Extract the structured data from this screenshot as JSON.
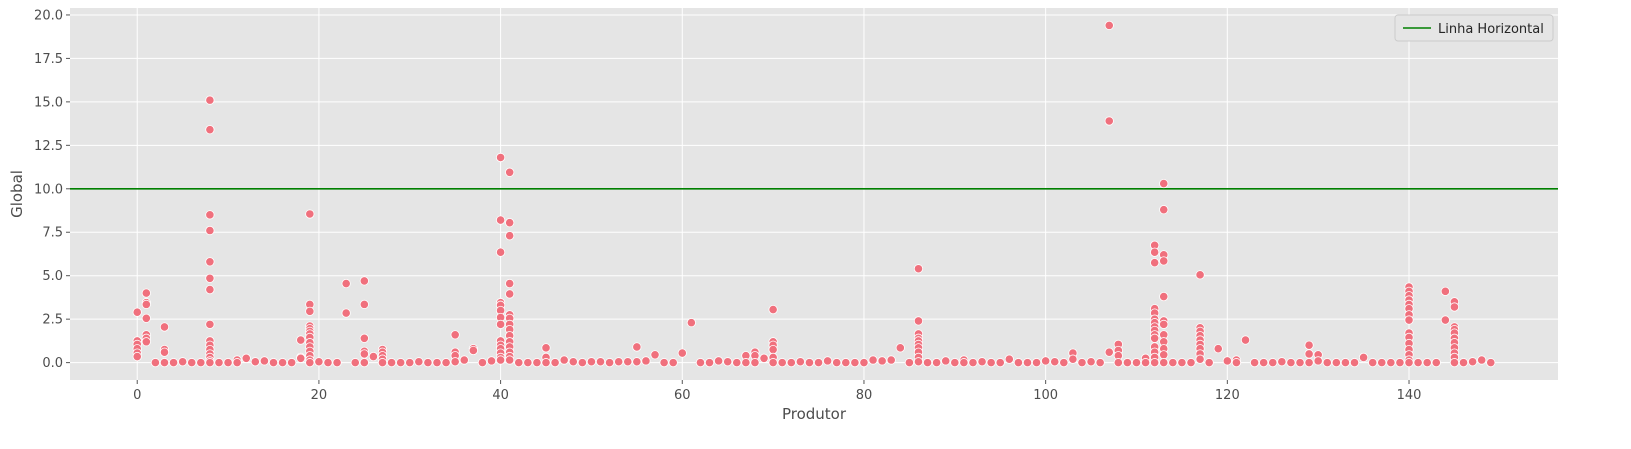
{
  "chart_data": {
    "type": "scatter",
    "xlabel": "Produtor",
    "ylabel": "Global",
    "xlim": [
      -7.4,
      156.4
    ],
    "ylim": [
      -1.0,
      20.4
    ],
    "xticks": [
      0,
      20,
      40,
      60,
      80,
      100,
      120,
      140
    ],
    "yticks": [
      0.0,
      2.5,
      5.0,
      7.5,
      10.0,
      12.5,
      15.0,
      17.5,
      20.0
    ],
    "ytick_labels": [
      "0.0",
      "2.5",
      "5.0",
      "7.5",
      "10.0",
      "12.5",
      "15.0",
      "17.5",
      "20.0"
    ],
    "grid": true,
    "legend_position": "top-right",
    "legend": [
      {
        "label": "Linha Horizontal",
        "color": "#008000",
        "kind": "line"
      }
    ],
    "hline": {
      "y": 10.0,
      "color": "#008000",
      "label": "Linha Horizontal"
    },
    "point_color": "#f0707d",
    "background_color": "#e5e5e5",
    "grid_color": "#ffffff",
    "points": [
      [
        0,
        2.9
      ],
      [
        0,
        1.25
      ],
      [
        0,
        1.05
      ],
      [
        0,
        0.8
      ],
      [
        0,
        0.55
      ],
      [
        0,
        0.35
      ],
      [
        1,
        4.0
      ],
      [
        1,
        3.45
      ],
      [
        1,
        3.35
      ],
      [
        1,
        2.55
      ],
      [
        1,
        1.6
      ],
      [
        1,
        1.4
      ],
      [
        1,
        1.2
      ],
      [
        2,
        0.0
      ],
      [
        3,
        2.05
      ],
      [
        3,
        0.75
      ],
      [
        3,
        0.6
      ],
      [
        3,
        0.0
      ],
      [
        4,
        0.0
      ],
      [
        5,
        0.05
      ],
      [
        6,
        0.0
      ],
      [
        7,
        0.0
      ],
      [
        8,
        15.1
      ],
      [
        8,
        13.4
      ],
      [
        8,
        8.5
      ],
      [
        8,
        7.6
      ],
      [
        8,
        5.8
      ],
      [
        8,
        4.85
      ],
      [
        8,
        4.2
      ],
      [
        8,
        2.2
      ],
      [
        8,
        1.25
      ],
      [
        8,
        1.0
      ],
      [
        8,
        0.75
      ],
      [
        8,
        0.5
      ],
      [
        8,
        0.3
      ],
      [
        8,
        0.1
      ],
      [
        8,
        0.0
      ],
      [
        9,
        0.0
      ],
      [
        10,
        0.0
      ],
      [
        11,
        0.15
      ],
      [
        11,
        0.0
      ],
      [
        12,
        0.25
      ],
      [
        13,
        0.05
      ],
      [
        14,
        0.1
      ],
      [
        15,
        0.0
      ],
      [
        16,
        0.0
      ],
      [
        17,
        0.0
      ],
      [
        18,
        1.3
      ],
      [
        18,
        0.3
      ],
      [
        18,
        0.25
      ],
      [
        19,
        8.55
      ],
      [
        19,
        3.35
      ],
      [
        19,
        2.95
      ],
      [
        19,
        2.1
      ],
      [
        19,
        1.95
      ],
      [
        19,
        1.8
      ],
      [
        19,
        1.65
      ],
      [
        19,
        1.45
      ],
      [
        19,
        1.15
      ],
      [
        19,
        0.9
      ],
      [
        19,
        0.65
      ],
      [
        19,
        0.4
      ],
      [
        19,
        0.15
      ],
      [
        19,
        0.0
      ],
      [
        20,
        0.05
      ],
      [
        21,
        0.0
      ],
      [
        22,
        0.0
      ],
      [
        23,
        4.55
      ],
      [
        23,
        2.85
      ],
      [
        24,
        0.0
      ],
      [
        25,
        4.7
      ],
      [
        25,
        3.35
      ],
      [
        25,
        1.4
      ],
      [
        25,
        0.65
      ],
      [
        25,
        0.5
      ],
      [
        25,
        0.0
      ],
      [
        26,
        0.35
      ],
      [
        27,
        0.75
      ],
      [
        27,
        0.6
      ],
      [
        27,
        0.4
      ],
      [
        27,
        0.2
      ],
      [
        27,
        0.0
      ],
      [
        28,
        0.0
      ],
      [
        29,
        0.0
      ],
      [
        30,
        0.0
      ],
      [
        31,
        0.05
      ],
      [
        32,
        0.0
      ],
      [
        33,
        0.0
      ],
      [
        34,
        0.0
      ],
      [
        35,
        1.6
      ],
      [
        35,
        0.6
      ],
      [
        35,
        0.4
      ],
      [
        35,
        0.05
      ],
      [
        36,
        0.15
      ],
      [
        37,
        0.8
      ],
      [
        37,
        0.7
      ],
      [
        38,
        0.0
      ],
      [
        39,
        0.1
      ],
      [
        40,
        11.8
      ],
      [
        40,
        8.2
      ],
      [
        40,
        6.35
      ],
      [
        40,
        3.45
      ],
      [
        40,
        3.3
      ],
      [
        40,
        3.0
      ],
      [
        40,
        2.6
      ],
      [
        40,
        2.2
      ],
      [
        40,
        1.25
      ],
      [
        40,
        1.0
      ],
      [
        40,
        0.8
      ],
      [
        40,
        0.55
      ],
      [
        40,
        0.3
      ],
      [
        40,
        0.15
      ],
      [
        41,
        10.95
      ],
      [
        41,
        8.05
      ],
      [
        41,
        7.3
      ],
      [
        41,
        4.55
      ],
      [
        41,
        3.95
      ],
      [
        41,
        2.75
      ],
      [
        41,
        2.55
      ],
      [
        41,
        2.2
      ],
      [
        41,
        1.9
      ],
      [
        41,
        1.55
      ],
      [
        41,
        1.2
      ],
      [
        41,
        0.9
      ],
      [
        41,
        0.6
      ],
      [
        41,
        0.35
      ],
      [
        41,
        0.15
      ],
      [
        42,
        0.0
      ],
      [
        43,
        0.0
      ],
      [
        44,
        0.0
      ],
      [
        45,
        0.85
      ],
      [
        45,
        0.3
      ],
      [
        45,
        0.0
      ],
      [
        46,
        0.0
      ],
      [
        47,
        0.15
      ],
      [
        48,
        0.05
      ],
      [
        49,
        0.0
      ],
      [
        50,
        0.05
      ],
      [
        51,
        0.05
      ],
      [
        52,
        0.0
      ],
      [
        53,
        0.05
      ],
      [
        54,
        0.05
      ],
      [
        55,
        0.9
      ],
      [
        55,
        0.05
      ],
      [
        56,
        0.1
      ],
      [
        57,
        0.45
      ],
      [
        58,
        0.0
      ],
      [
        59,
        0.0
      ],
      [
        60,
        0.55
      ],
      [
        61,
        2.3
      ],
      [
        62,
        0.0
      ],
      [
        63,
        0.0
      ],
      [
        64,
        0.1
      ],
      [
        65,
        0.05
      ],
      [
        66,
        0.0
      ],
      [
        67,
        0.4
      ],
      [
        67,
        0.0
      ],
      [
        68,
        0.6
      ],
      [
        68,
        0.4
      ],
      [
        68,
        0.0
      ],
      [
        69,
        0.25
      ],
      [
        70,
        3.05
      ],
      [
        70,
        1.2
      ],
      [
        70,
        1.0
      ],
      [
        70,
        0.75
      ],
      [
        70,
        0.3
      ],
      [
        70,
        0.0
      ],
      [
        71,
        0.0
      ],
      [
        72,
        0.0
      ],
      [
        73,
        0.05
      ],
      [
        74,
        0.0
      ],
      [
        75,
        0.0
      ],
      [
        76,
        0.1
      ],
      [
        77,
        0.0
      ],
      [
        78,
        0.0
      ],
      [
        79,
        0.0
      ],
      [
        80,
        0.0
      ],
      [
        81,
        0.15
      ],
      [
        82,
        0.1
      ],
      [
        83,
        0.15
      ],
      [
        84,
        0.85
      ],
      [
        85,
        0.0
      ],
      [
        86,
        5.4
      ],
      [
        86,
        2.4
      ],
      [
        86,
        1.65
      ],
      [
        86,
        1.4
      ],
      [
        86,
        1.25
      ],
      [
        86,
        1.05
      ],
      [
        86,
        0.85
      ],
      [
        86,
        0.6
      ],
      [
        86,
        0.3
      ],
      [
        86,
        0.05
      ],
      [
        87,
        0.0
      ],
      [
        88,
        0.0
      ],
      [
        89,
        0.1
      ],
      [
        90,
        0.0
      ],
      [
        91,
        0.15
      ],
      [
        91,
        0.0
      ],
      [
        92,
        0.0
      ],
      [
        93,
        0.05
      ],
      [
        94,
        0.0
      ],
      [
        95,
        0.0
      ],
      [
        96,
        0.2
      ],
      [
        97,
        0.0
      ],
      [
        98,
        0.0
      ],
      [
        99,
        0.0
      ],
      [
        100,
        0.1
      ],
      [
        101,
        0.05
      ],
      [
        102,
        0.0
      ],
      [
        103,
        0.55
      ],
      [
        103,
        0.2
      ],
      [
        104,
        0.0
      ],
      [
        105,
        0.05
      ],
      [
        106,
        0.0
      ],
      [
        107,
        19.4
      ],
      [
        107,
        13.9
      ],
      [
        107,
        0.6
      ],
      [
        108,
        1.05
      ],
      [
        108,
        0.7
      ],
      [
        108,
        0.4
      ],
      [
        108,
        0.0
      ],
      [
        109,
        0.0
      ],
      [
        110,
        0.0
      ],
      [
        111,
        0.25
      ],
      [
        111,
        0.0
      ],
      [
        112,
        6.75
      ],
      [
        112,
        6.35
      ],
      [
        112,
        5.75
      ],
      [
        112,
        3.1
      ],
      [
        112,
        2.85
      ],
      [
        112,
        2.5
      ],
      [
        112,
        2.3
      ],
      [
        112,
        2.05
      ],
      [
        112,
        1.85
      ],
      [
        112,
        1.6
      ],
      [
        112,
        1.4
      ],
      [
        112,
        0.9
      ],
      [
        112,
        0.6
      ],
      [
        112,
        0.3
      ],
      [
        112,
        0.0
      ],
      [
        113,
        10.3
      ],
      [
        113,
        8.8
      ],
      [
        113,
        6.2
      ],
      [
        113,
        5.85
      ],
      [
        113,
        3.8
      ],
      [
        113,
        2.4
      ],
      [
        113,
        2.2
      ],
      [
        113,
        1.6
      ],
      [
        113,
        1.2
      ],
      [
        113,
        0.8
      ],
      [
        113,
        0.45
      ],
      [
        113,
        0.0
      ],
      [
        114,
        0.0
      ],
      [
        115,
        0.0
      ],
      [
        116,
        0.0
      ],
      [
        117,
        5.05
      ],
      [
        117,
        2.0
      ],
      [
        117,
        1.8
      ],
      [
        117,
        1.55
      ],
      [
        117,
        1.3
      ],
      [
        117,
        1.05
      ],
      [
        117,
        0.8
      ],
      [
        117,
        0.5
      ],
      [
        117,
        0.2
      ],
      [
        118,
        0.0
      ],
      [
        119,
        0.8
      ],
      [
        120,
        0.1
      ],
      [
        121,
        0.15
      ],
      [
        121,
        0.0
      ],
      [
        122,
        1.3
      ],
      [
        123,
        0.0
      ],
      [
        124,
        0.0
      ],
      [
        125,
        0.0
      ],
      [
        126,
        0.05
      ],
      [
        127,
        0.0
      ],
      [
        128,
        0.0
      ],
      [
        129,
        1.0
      ],
      [
        129,
        0.5
      ],
      [
        129,
        0.0
      ],
      [
        130,
        0.45
      ],
      [
        130,
        0.1
      ],
      [
        131,
        0.0
      ],
      [
        132,
        0.0
      ],
      [
        133,
        0.0
      ],
      [
        134,
        0.0
      ],
      [
        135,
        0.3
      ],
      [
        136,
        0.0
      ],
      [
        137,
        0.0
      ],
      [
        138,
        0.0
      ],
      [
        139,
        0.0
      ],
      [
        140,
        4.35
      ],
      [
        140,
        4.1
      ],
      [
        140,
        3.85
      ],
      [
        140,
        3.6
      ],
      [
        140,
        3.35
      ],
      [
        140,
        3.1
      ],
      [
        140,
        2.75
      ],
      [
        140,
        2.45
      ],
      [
        140,
        1.7
      ],
      [
        140,
        1.45
      ],
      [
        140,
        1.1
      ],
      [
        140,
        0.75
      ],
      [
        140,
        0.45
      ],
      [
        140,
        0.15
      ],
      [
        140,
        0.0
      ],
      [
        141,
        0.0
      ],
      [
        142,
        0.0
      ],
      [
        143,
        0.0
      ],
      [
        144,
        4.1
      ],
      [
        144,
        2.45
      ],
      [
        145,
        3.5
      ],
      [
        145,
        3.2
      ],
      [
        145,
        2.05
      ],
      [
        145,
        1.9
      ],
      [
        145,
        1.7
      ],
      [
        145,
        1.4
      ],
      [
        145,
        1.15
      ],
      [
        145,
        0.85
      ],
      [
        145,
        0.55
      ],
      [
        145,
        0.3
      ],
      [
        145,
        0.0
      ],
      [
        146,
        0.0
      ],
      [
        147,
        0.05
      ],
      [
        148,
        0.15
      ],
      [
        149,
        0.0
      ]
    ]
  }
}
